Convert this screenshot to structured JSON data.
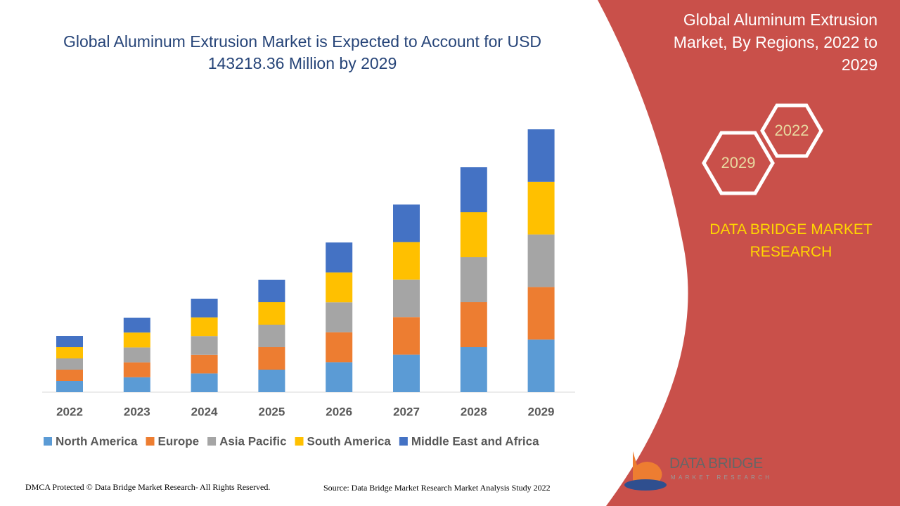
{
  "chart_data": {
    "type": "stacked-bar",
    "title": "Global Aluminum Extrusion Market is Expected to Account for USD 143218.36 Million by 2029",
    "categories": [
      "2022",
      "2023",
      "2024",
      "2025",
      "2026",
      "2027",
      "2028",
      "2029"
    ],
    "series": [
      {
        "name": "North America",
        "color": "#5b9bd5",
        "values": [
          16,
          21.2,
          26.6,
          32,
          42.6,
          53.4,
          64,
          74.8
        ]
      },
      {
        "name": "Europe",
        "color": "#ed7d31",
        "values": [
          16,
          21.2,
          26.6,
          32,
          42.6,
          53.4,
          64,
          74.8
        ]
      },
      {
        "name": "Asia Pacific",
        "color": "#a5a5a5",
        "values": [
          16,
          21.2,
          26.6,
          32,
          42.6,
          53.4,
          64,
          74.8
        ]
      },
      {
        "name": "South America",
        "color": "#ffc000",
        "values": [
          16,
          21.2,
          26.6,
          32,
          42.6,
          53.4,
          64,
          74.8
        ]
      },
      {
        "name": "Middle East and Africa",
        "color": "#4472c4",
        "values": [
          16,
          21.2,
          26.6,
          32,
          42.6,
          53.4,
          64,
          74.8
        ]
      }
    ],
    "legend": "bottom"
  },
  "panel": {
    "title": "Global Aluminum Extrusion Market, By Regions, 2022 to 2029",
    "hexagons": [
      "2022",
      "2029"
    ],
    "brand": "DATA BRIDGE MARKET RESEARCH"
  },
  "footer": {
    "copyright": "DMCA Protected © Data Bridge Market Research- All Rights Reserved.",
    "source": "Source: Data Bridge Market Research Market Analysis Study 2022"
  },
  "logo": {
    "name": "DATA BRIDGE",
    "tagline": "MARKET RESEARCH"
  }
}
